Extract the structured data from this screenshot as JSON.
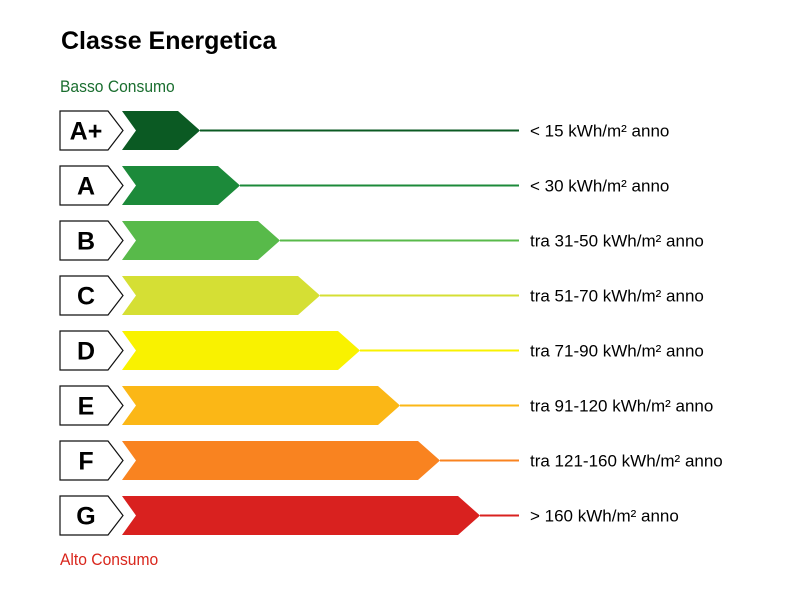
{
  "title": "Classe Energetica",
  "scale": {
    "low_label": "Basso Consumo",
    "high_label": "Alto Consumo",
    "low_color": "#1a6e2f",
    "high_color": "#d9261c"
  },
  "classes": [
    {
      "letter": "A+",
      "range": "< 15 kWh/m² anno",
      "color": "#0b5a23"
    },
    {
      "letter": "A",
      "range": "< 30 kWh/m² anno",
      "color": "#1c8a3a"
    },
    {
      "letter": "B",
      "range": "tra 31-50 kWh/m² anno",
      "color": "#58ba4a"
    },
    {
      "letter": "C",
      "range": "tra 51-70 kWh/m² anno",
      "color": "#d5df34"
    },
    {
      "letter": "D",
      "range": "tra 71-90 kWh/m² anno",
      "color": "#f9f200"
    },
    {
      "letter": "E",
      "range": "tra 91-120 kWh/m² anno",
      "color": "#fbb716"
    },
    {
      "letter": "F",
      "range": "tra 121-160 kWh/m² anno",
      "color": "#f98320"
    },
    {
      "letter": "G",
      "range": "> 160 kWh/m² anno",
      "color": "#d9211f"
    }
  ]
}
